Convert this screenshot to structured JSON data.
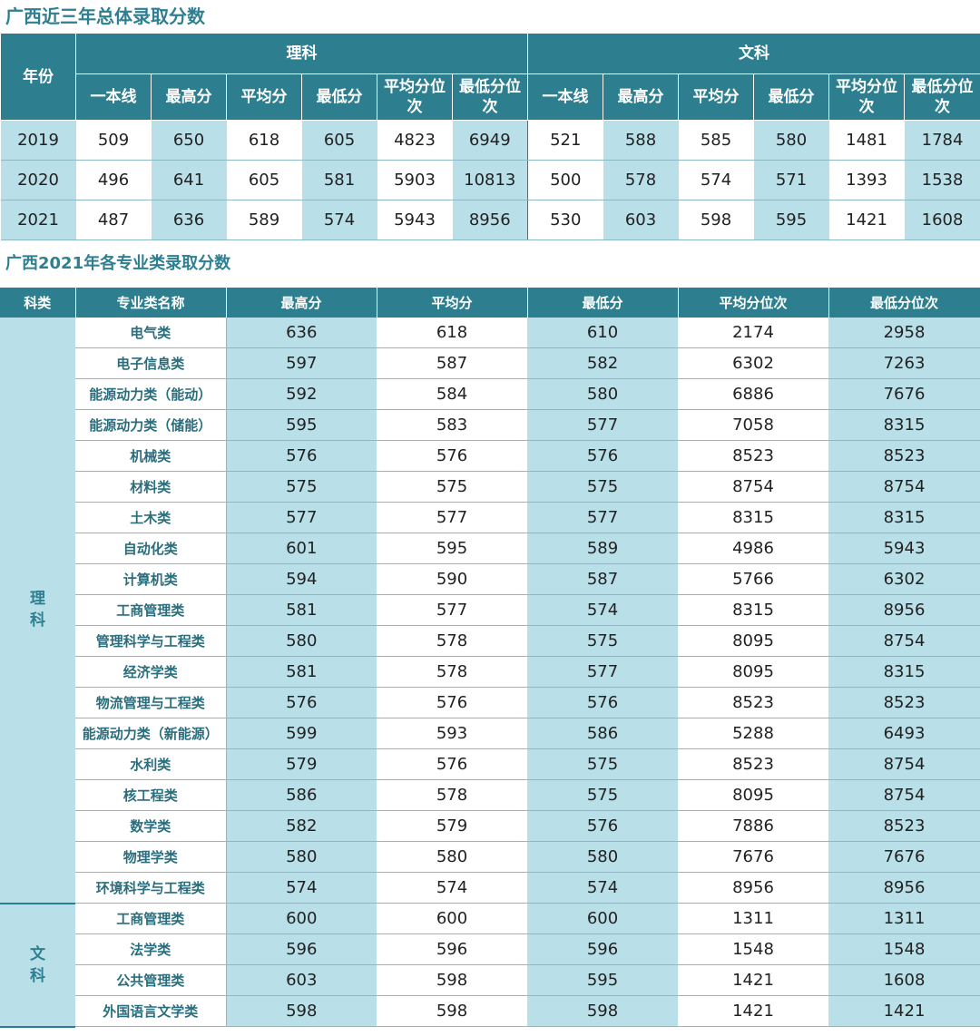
{
  "section1": {
    "title": "广西近三年总体录取分数",
    "year_header": "年份",
    "group_science": "理科",
    "group_arts": "文科",
    "sub_headers": [
      "一本线",
      "最高分",
      "平均分",
      "最低分",
      "平均分位次",
      "最低分位次"
    ],
    "rows": [
      {
        "year": "2019",
        "science": [
          "509",
          "650",
          "618",
          "605",
          "4823",
          "6949"
        ],
        "arts": [
          "521",
          "588",
          "585",
          "580",
          "1481",
          "1784"
        ]
      },
      {
        "year": "2020",
        "science": [
          "496",
          "641",
          "605",
          "581",
          "5903",
          "10813"
        ],
        "arts": [
          "500",
          "578",
          "574",
          "571",
          "1393",
          "1538"
        ]
      },
      {
        "year": "2021",
        "science": [
          "487",
          "636",
          "589",
          "574",
          "5943",
          "8956"
        ],
        "arts": [
          "530",
          "603",
          "598",
          "595",
          "1421",
          "1608"
        ]
      }
    ]
  },
  "section2": {
    "title": "广西2021年各专业类录取分数",
    "headers": [
      "科类",
      "专业类名称",
      "最高分",
      "平均分",
      "最低分",
      "平均分位次",
      "最低分位次"
    ],
    "groups": [
      {
        "category": "理科",
        "rows": [
          [
            "电气类",
            "636",
            "618",
            "610",
            "2174",
            "2958"
          ],
          [
            "电子信息类",
            "597",
            "587",
            "582",
            "6302",
            "7263"
          ],
          [
            "能源动力类（能动）",
            "592",
            "584",
            "580",
            "6886",
            "7676"
          ],
          [
            "能源动力类（储能）",
            "595",
            "583",
            "577",
            "7058",
            "8315"
          ],
          [
            "机械类",
            "576",
            "576",
            "576",
            "8523",
            "8523"
          ],
          [
            "材料类",
            "575",
            "575",
            "575",
            "8754",
            "8754"
          ],
          [
            "土木类",
            "577",
            "577",
            "577",
            "8315",
            "8315"
          ],
          [
            "自动化类",
            "601",
            "595",
            "589",
            "4986",
            "5943"
          ],
          [
            "计算机类",
            "594",
            "590",
            "587",
            "5766",
            "6302"
          ],
          [
            "工商管理类",
            "581",
            "577",
            "574",
            "8315",
            "8956"
          ],
          [
            "管理科学与工程类",
            "580",
            "578",
            "575",
            "8095",
            "8754"
          ],
          [
            "经济学类",
            "581",
            "578",
            "577",
            "8095",
            "8315"
          ],
          [
            "物流管理与工程类",
            "576",
            "576",
            "576",
            "8523",
            "8523"
          ],
          [
            "能源动力类（新能源）",
            "599",
            "593",
            "586",
            "5288",
            "6493"
          ],
          [
            "水利类",
            "579",
            "576",
            "575",
            "8523",
            "8754"
          ],
          [
            "核工程类",
            "586",
            "578",
            "575",
            "8095",
            "8754"
          ],
          [
            "数学类",
            "582",
            "579",
            "576",
            "7886",
            "8523"
          ],
          [
            "物理学类",
            "580",
            "580",
            "580",
            "7676",
            "7676"
          ],
          [
            "环境科学与工程类",
            "574",
            "574",
            "574",
            "8956",
            "8956"
          ]
        ]
      },
      {
        "category": "文科",
        "rows": [
          [
            "工商管理类",
            "600",
            "600",
            "600",
            "1311",
            "1311"
          ],
          [
            "法学类",
            "596",
            "596",
            "596",
            "1548",
            "1548"
          ],
          [
            "公共管理类",
            "603",
            "598",
            "595",
            "1421",
            "1608"
          ],
          [
            "外国语言文学类",
            "598",
            "598",
            "598",
            "1421",
            "1421"
          ]
        ]
      }
    ]
  },
  "colors": {
    "header_bg": "#2d7f8f",
    "title_text": "#2e7f91",
    "shaded_cell": "#b9dfe8",
    "major_text": "#2a6e7d"
  }
}
